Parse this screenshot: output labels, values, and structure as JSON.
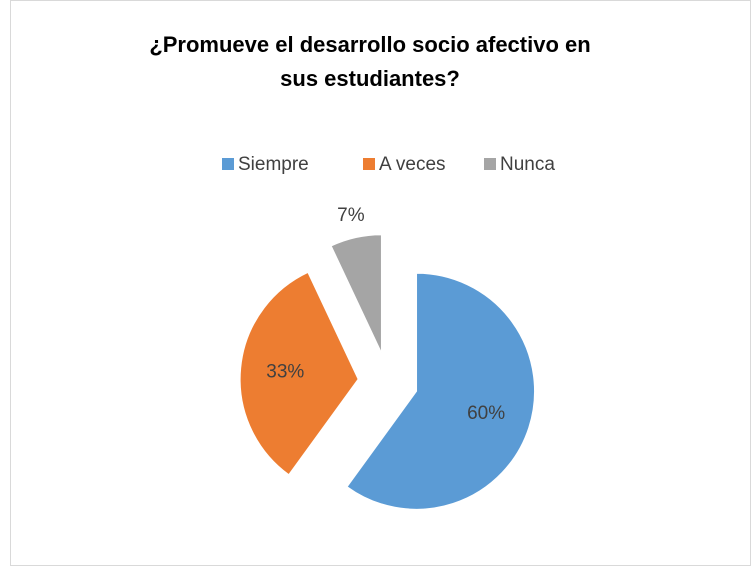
{
  "chart_data": {
    "type": "pie",
    "title": [
      "¿Promueve el desarrollo  socio afectivo en",
      "sus estudiantes?"
    ],
    "categories": [
      "Siempre",
      "A veces",
      "Nunca"
    ],
    "values": [
      60,
      33,
      7
    ],
    "value_labels": [
      "60%",
      "33%",
      "7%"
    ],
    "colors": [
      "#5b9bd5",
      "#ed7d31",
      "#a5a5a5"
    ],
    "legend": "top",
    "exploded": true
  }
}
